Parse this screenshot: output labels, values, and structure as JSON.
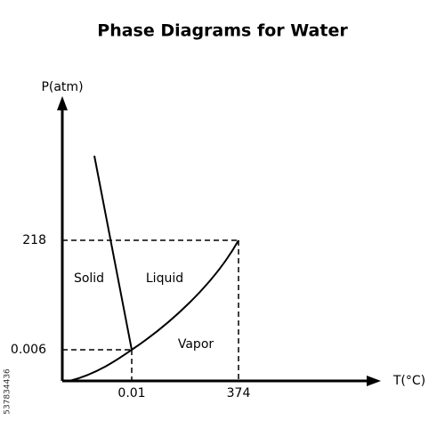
{
  "title": "Phase Diagrams for Water",
  "axes": {
    "y_label": "P(atm)",
    "x_label": "T(°C)",
    "y_ticks": [
      "218",
      "0.006"
    ],
    "x_ticks": [
      "0.01",
      "374"
    ]
  },
  "regions": [
    "Solid",
    "Liquid",
    "Vapor"
  ],
  "watermark_id": "537834436"
}
